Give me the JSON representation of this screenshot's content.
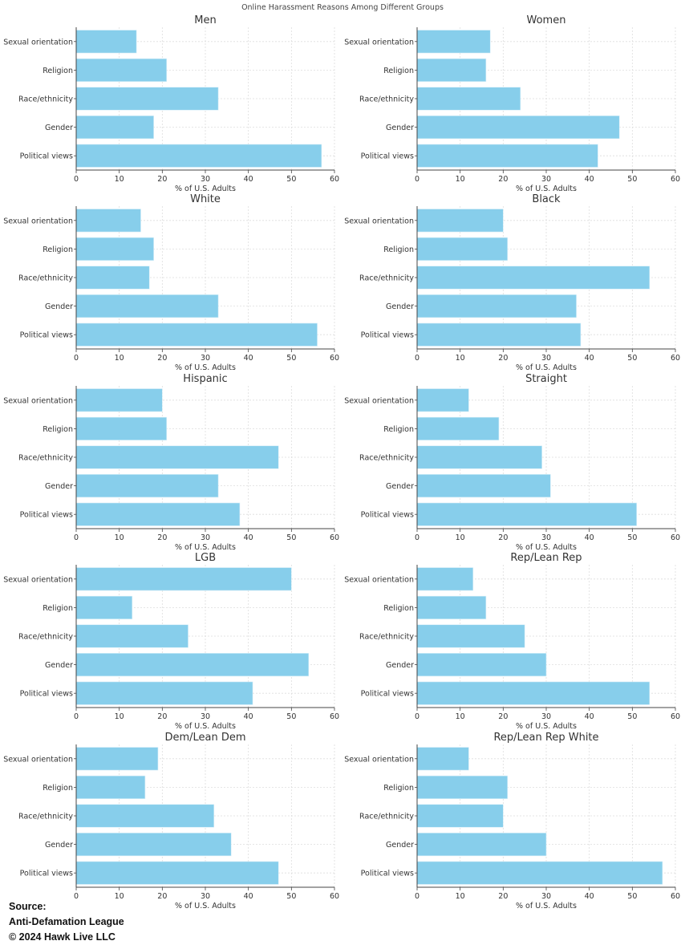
{
  "chart_data": {
    "type": "bar",
    "orientation": "horizontal",
    "title": "Online Harassment Reasons Among Different Groups",
    "xlabel": "% of U.S. Adults",
    "xlim": [
      0,
      60
    ],
    "xticks": [
      0,
      10,
      20,
      30,
      40,
      50,
      60
    ],
    "grid": true,
    "bar_color": "#87CEEB",
    "categories": [
      "Political views",
      "Gender",
      "Race/ethnicity",
      "Religion",
      "Sexual orientation"
    ],
    "panels": [
      {
        "title": "Men",
        "values": [
          57,
          18,
          33,
          21,
          14
        ]
      },
      {
        "title": "Women",
        "values": [
          42,
          47,
          24,
          16,
          17
        ]
      },
      {
        "title": "White",
        "values": [
          56,
          33,
          17,
          18,
          15
        ]
      },
      {
        "title": "Black",
        "values": [
          38,
          37,
          54,
          21,
          20
        ]
      },
      {
        "title": "Hispanic",
        "values": [
          38,
          33,
          47,
          21,
          20
        ]
      },
      {
        "title": "Straight",
        "values": [
          51,
          31,
          29,
          19,
          12
        ]
      },
      {
        "title": "LGB",
        "values": [
          41,
          54,
          26,
          13,
          50
        ]
      },
      {
        "title": "Rep/Lean Rep",
        "values": [
          54,
          30,
          25,
          16,
          13
        ]
      },
      {
        "title": "Dem/Lean Dem",
        "values": [
          47,
          36,
          32,
          16,
          19
        ]
      },
      {
        "title": "Rep/Lean Rep White",
        "values": [
          57,
          30,
          20,
          21,
          12
        ]
      }
    ]
  },
  "source": {
    "label": "Source:",
    "organization": "Anti-Defamation League",
    "copyright": "© 2024 Hawk Live LLC"
  }
}
